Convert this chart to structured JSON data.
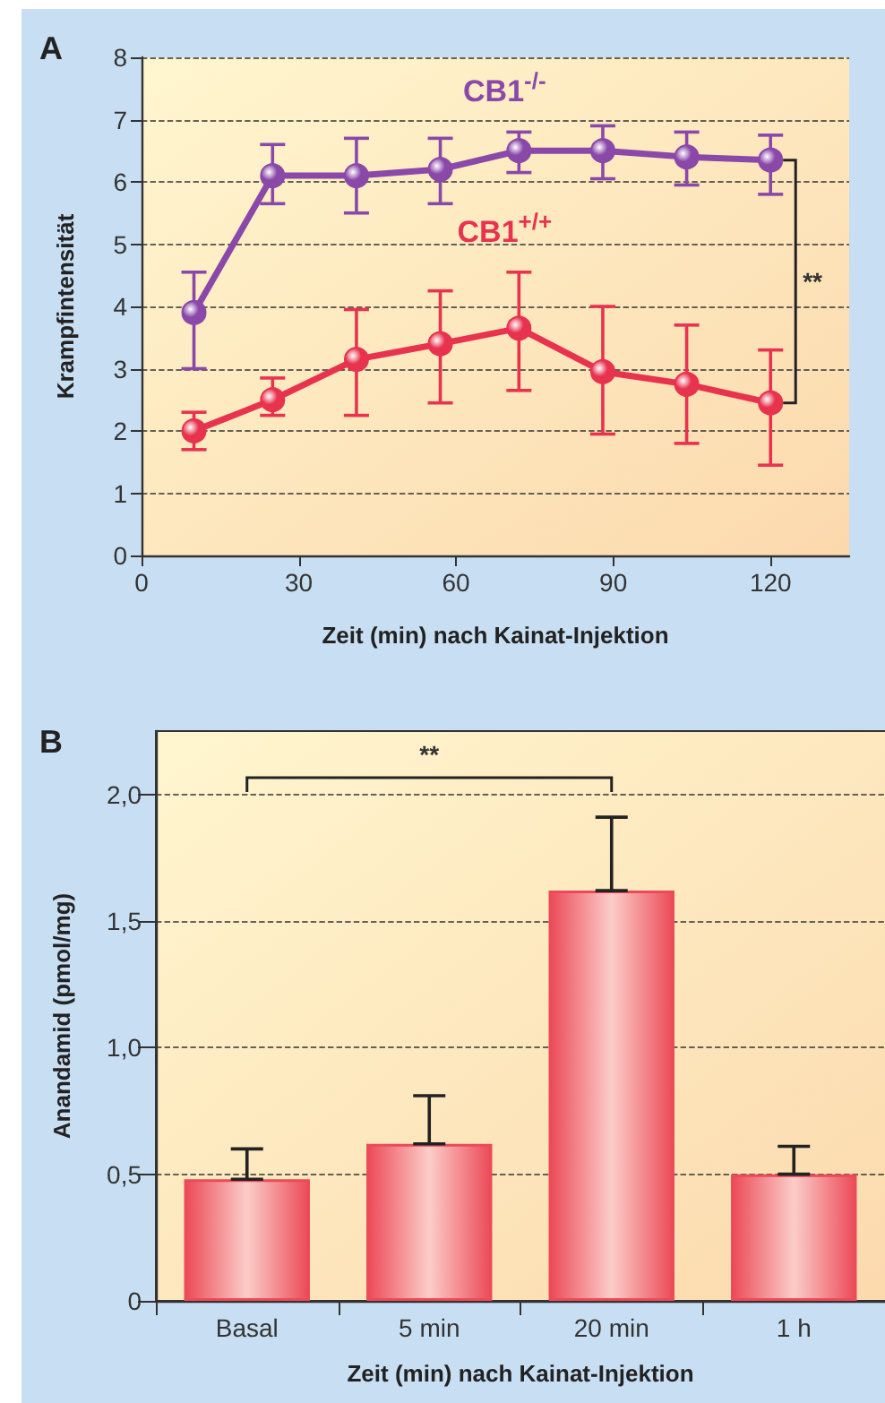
{
  "chart_data": [
    {
      "type": "line",
      "title": "A",
      "xlabel": "Zeit (min) nach Kainat-Injektion",
      "ylabel": "Krampfintensität",
      "x": [
        10,
        25,
        41,
        57,
        72,
        88,
        104,
        120
      ],
      "series": [
        {
          "name": "CB1$^{-/-}$",
          "color": "#8a48a8",
          "values": [
            3.9,
            6.1,
            6.1,
            6.2,
            6.5,
            6.5,
            6.4,
            6.35
          ],
          "errors": [
            [
              3.0,
              4.55
            ],
            [
              5.65,
              6.6
            ],
            [
              5.5,
              6.7
            ],
            [
              5.65,
              6.7
            ],
            [
              6.15,
              6.8
            ],
            [
              6.05,
              6.9
            ],
            [
              5.95,
              6.8
            ],
            [
              5.8,
              6.75
            ]
          ]
        },
        {
          "name": "CB1$^{+/+}$",
          "color": "#e8334e",
          "values": [
            2.0,
            2.5,
            3.15,
            3.4,
            3.65,
            2.95,
            2.75,
            2.45
          ],
          "errors": [
            [
              1.7,
              2.3
            ],
            [
              2.25,
              2.85
            ],
            [
              2.25,
              3.95
            ],
            [
              2.45,
              4.25
            ],
            [
              2.65,
              4.55
            ],
            [
              1.95,
              4.0
            ],
            [
              1.8,
              3.7
            ],
            [
              1.45,
              3.3
            ]
          ]
        }
      ],
      "xlim": [
        0,
        135
      ],
      "xticks": [
        0,
        30,
        60,
        90,
        120
      ],
      "ylim": [
        0,
        8
      ],
      "yticks": [
        0,
        1,
        2,
        3,
        4,
        5,
        6,
        7,
        8
      ],
      "grid": "y",
      "marker": "circle",
      "line_style": "solid",
      "legend": false,
      "annotations": [
        "**"
      ]
    },
    {
      "type": "bar",
      "title": "B",
      "xlabel": "Zeit (min) nach Kainat-Injektion",
      "ylabel": "Anandamid (pmol/mg)",
      "categories": [
        "Basal",
        "5 min",
        "20 min",
        "1 h"
      ],
      "values": [
        0.48,
        0.62,
        1.62,
        0.5
      ],
      "color": "#ec4a58",
      "errors": [
        [
          0.48,
          0.6
        ],
        [
          0.62,
          0.81
        ],
        [
          1.62,
          1.91
        ],
        [
          0.5,
          0.61
        ]
      ],
      "ylim": [
        0,
        2.25
      ],
      "yticks": [
        0,
        {
          "value": 0.5,
          "label": "0,5"
        },
        {
          "value": 1,
          "label": "1,0"
        },
        {
          "value": 1.5,
          "label": "1,5"
        },
        {
          "value": 2,
          "label": "2,0"
        }
      ],
      "grid": "y",
      "legend": false,
      "annotations": [
        "**"
      ]
    }
  ]
}
